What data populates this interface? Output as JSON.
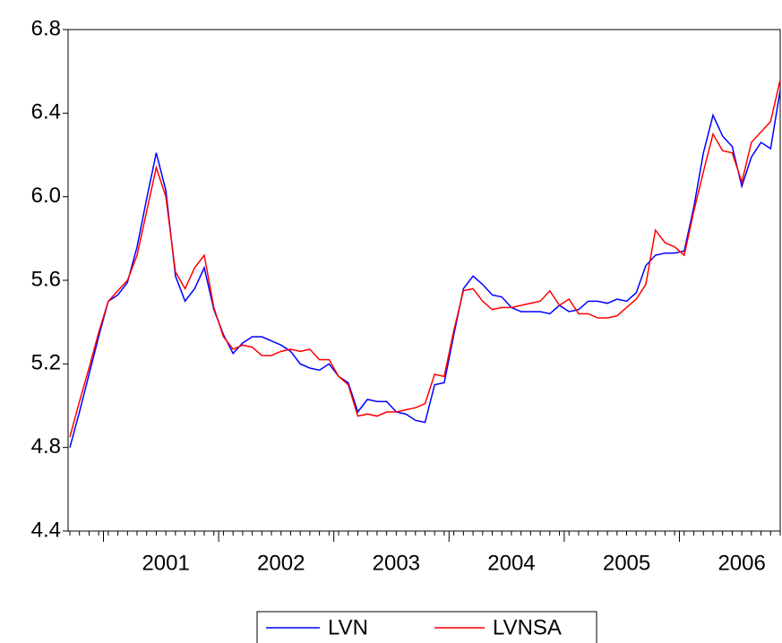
{
  "chart_data": {
    "type": "line",
    "categories": [
      null,
      null,
      null,
      null,
      null,
      null,
      null,
      null,
      null,
      null,
      "2001",
      null,
      null,
      null,
      null,
      null,
      null,
      null,
      null,
      null,
      null,
      null,
      "2002",
      null,
      null,
      null,
      null,
      null,
      null,
      null,
      null,
      null,
      null,
      null,
      "2003",
      null,
      null,
      null,
      null,
      null,
      null,
      null,
      null,
      null,
      null,
      null,
      "2004",
      null,
      null,
      null,
      null,
      null,
      null,
      null,
      null,
      null,
      null,
      null,
      "2005",
      null,
      null,
      null,
      null,
      null,
      null,
      null,
      null,
      null,
      null,
      null,
      "2006",
      null,
      null,
      null,
      null
    ],
    "series": [
      {
        "name": "LVN",
        "color": "#0000ff",
        "values": [
          4.8,
          4.97,
          5.15,
          5.33,
          5.5,
          5.53,
          5.59,
          5.76,
          5.99,
          6.21,
          6.03,
          5.62,
          5.5,
          5.56,
          5.66,
          5.46,
          5.34,
          5.25,
          5.3,
          5.33,
          5.33,
          5.31,
          5.29,
          5.26,
          5.2,
          5.18,
          5.17,
          5.2,
          5.14,
          5.11,
          4.97,
          5.03,
          5.02,
          5.02,
          4.97,
          4.96,
          4.93,
          4.92,
          5.1,
          5.11,
          5.34,
          5.56,
          5.62,
          5.58,
          5.53,
          5.52,
          5.47,
          5.45,
          5.45,
          5.45,
          5.44,
          5.48,
          5.45,
          5.46,
          5.5,
          5.5,
          5.49,
          5.51,
          5.5,
          5.54,
          5.67,
          5.72,
          5.73,
          5.73,
          5.74,
          5.95,
          6.21,
          6.39,
          6.29,
          6.24,
          6.05,
          6.19,
          6.26,
          6.23,
          6.51
        ]
      },
      {
        "name": "LVNSA",
        "color": "#ff0000",
        "values": [
          4.85,
          5.02,
          5.18,
          5.35,
          5.5,
          5.55,
          5.6,
          5.72,
          5.93,
          6.14,
          6.0,
          5.64,
          5.56,
          5.66,
          5.72,
          5.47,
          5.33,
          5.27,
          5.29,
          5.28,
          5.24,
          5.24,
          5.26,
          5.27,
          5.26,
          5.27,
          5.22,
          5.22,
          5.14,
          5.1,
          4.95,
          4.96,
          4.95,
          4.97,
          4.97,
          4.98,
          4.99,
          5.01,
          5.15,
          5.14,
          5.36,
          5.55,
          5.56,
          5.5,
          5.46,
          5.47,
          5.47,
          5.48,
          5.49,
          5.5,
          5.55,
          5.48,
          5.51,
          5.44,
          5.44,
          5.42,
          5.42,
          5.43,
          5.47,
          5.51,
          5.58,
          5.84,
          5.78,
          5.76,
          5.72,
          5.93,
          6.12,
          6.3,
          6.22,
          6.21,
          6.07,
          6.26,
          6.31,
          6.36,
          6.56
        ]
      }
    ],
    "ylim": [
      4.4,
      6.8
    ],
    "yticks": [
      {
        "value": 4.4,
        "label": "4.4"
      },
      {
        "value": 4.8,
        "label": "4.8"
      },
      {
        "value": 5.2,
        "label": "5.2"
      },
      {
        "value": 5.6,
        "label": "5.6"
      },
      {
        "value": 6.0,
        "label": "6.0"
      },
      {
        "value": 6.4,
        "label": "6.4"
      },
      {
        "value": 6.8,
        "label": "6.8"
      }
    ],
    "grid": false
  }
}
